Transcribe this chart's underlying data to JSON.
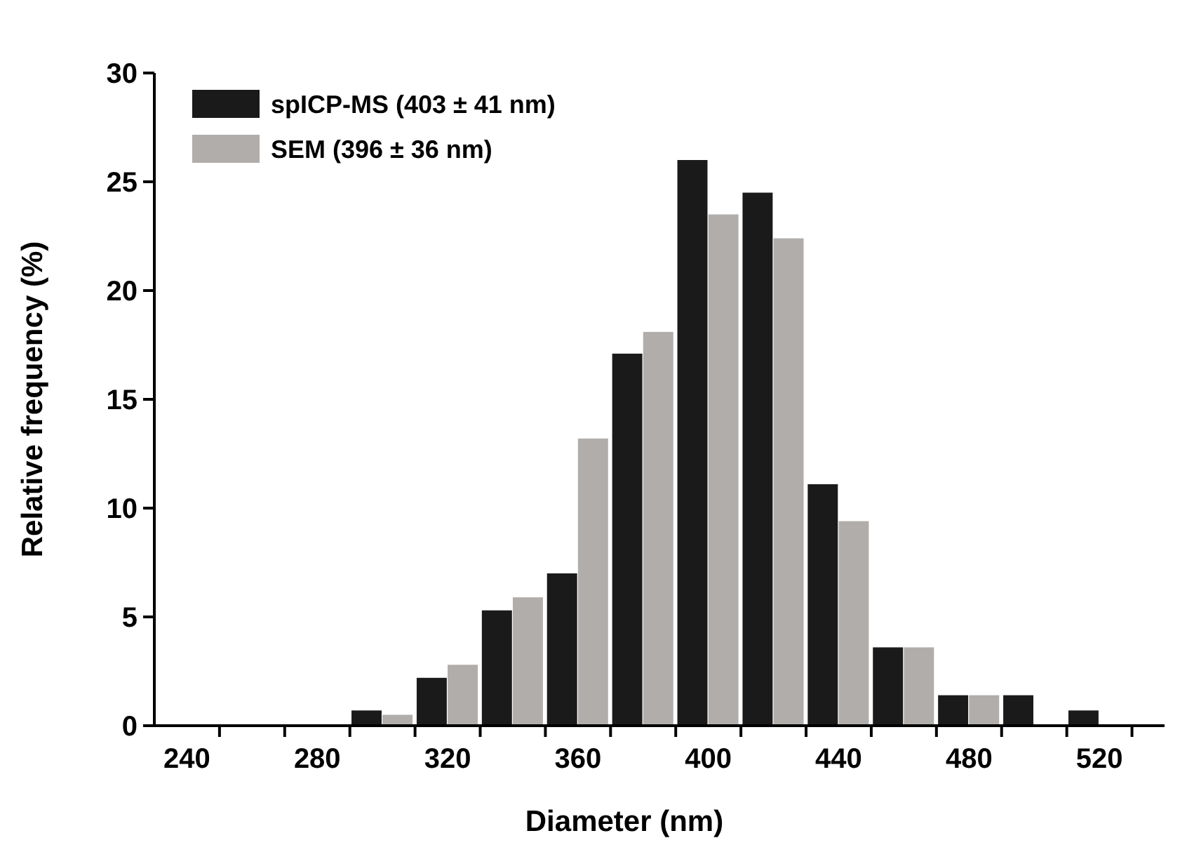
{
  "chart_data": {
    "type": "bar",
    "xlabel": "Diameter (nm)",
    "ylabel": "Relative frequency (%)",
    "x": [
      300,
      320,
      340,
      360,
      380,
      400,
      420,
      440,
      460,
      480,
      500,
      520
    ],
    "series": [
      {
        "name": "spICP-MS (403 ± 41 nm)",
        "color": "#1a1a1a",
        "values": [
          0.7,
          2.2,
          5.3,
          7.0,
          17.1,
          26.0,
          24.5,
          11.1,
          3.6,
          1.4,
          1.4,
          0.7
        ]
      },
      {
        "name": "SEM (396 ± 36 nm)",
        "color": "#b0adab",
        "values": [
          0.5,
          2.8,
          5.9,
          13.2,
          18.1,
          23.5,
          22.4,
          9.4,
          3.6,
          1.4,
          null,
          null
        ]
      }
    ],
    "xlim": [
      230,
      540
    ],
    "xticks": [
      240,
      280,
      320,
      360,
      400,
      440,
      480,
      520,
      {
        "value": 250,
        "label": null
      },
      {
        "value": 270,
        "label": null
      },
      {
        "value": 290,
        "label": null
      },
      {
        "value": 310,
        "label": null
      },
      {
        "value": 330,
        "label": null
      },
      {
        "value": 350,
        "label": null
      },
      {
        "value": 370,
        "label": null
      },
      {
        "value": 390,
        "label": null
      },
      {
        "value": 410,
        "label": null
      },
      {
        "value": 430,
        "label": null
      },
      {
        "value": 450,
        "label": null
      },
      {
        "value": 470,
        "label": null
      },
      {
        "value": 490,
        "label": null
      },
      {
        "value": 510,
        "label": null
      },
      {
        "value": 530,
        "label": null
      }
    ],
    "ylim": [
      0,
      30
    ],
    "yticks": [
      0,
      5,
      10,
      15,
      20,
      25,
      30
    ],
    "legend": "top left"
  }
}
